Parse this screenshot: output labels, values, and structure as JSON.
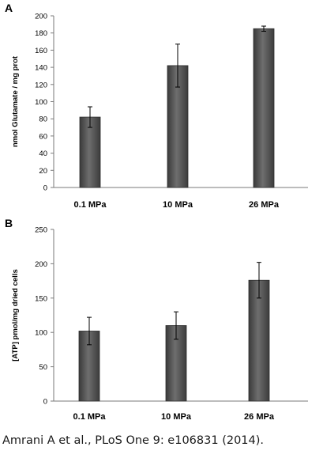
{
  "panels": [
    {
      "letter": "A",
      "chart_data": {
        "type": "bar",
        "categories": [
          "0.1 MPa",
          "10 MPa",
          "26 MPa"
        ],
        "values": [
          82,
          142,
          185
        ],
        "errors": [
          12,
          25,
          3
        ],
        "title": "",
        "xlabel": "",
        "ylabel": "nmol Glutamate / mg prot",
        "ylim": [
          0,
          200
        ],
        "yticks": [
          0,
          20,
          40,
          60,
          80,
          100,
          120,
          140,
          160,
          180,
          200
        ],
        "grid": false,
        "bar_color": "#595959"
      }
    },
    {
      "letter": "B",
      "chart_data": {
        "type": "bar",
        "categories": [
          "0.1 MPa",
          "10 MPa",
          "26 MPa"
        ],
        "values": [
          102,
          110,
          176
        ],
        "errors": [
          20,
          20,
          26
        ],
        "title": "",
        "xlabel": "",
        "ylabel": "[ATP] pmol/mg dried cells",
        "ylim": [
          0,
          250
        ],
        "yticks": [
          0,
          50,
          100,
          150,
          200,
          250
        ],
        "grid": false,
        "bar_color": "#595959"
      }
    }
  ],
  "citation": "Amrani A et al., PLoS One 9: e106831 (2014)."
}
